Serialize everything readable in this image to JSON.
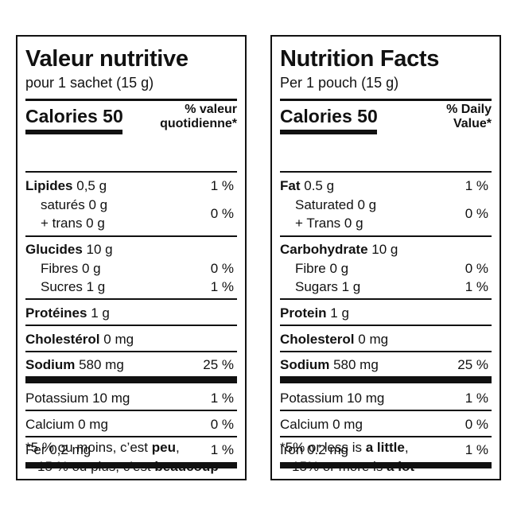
{
  "french": {
    "title": "Valeur nutritive",
    "serving": "pour 1 sachet (15 g)",
    "calories_label": "Calories",
    "calories_value": "50",
    "dv_header_line1": "% valeur",
    "dv_header_line2": "quotidienne",
    "dv_header_asterisk": "*",
    "fat_label": "Lipides",
    "fat_amount": "0,5 g",
    "fat_pct": "1 %",
    "saturated": "saturés 0 g",
    "trans": "+ trans 0 g",
    "sat_trans_pct": "0 %",
    "carb_label": "Glucides",
    "carb_amount": "10 g",
    "fibre": "Fibres 0 g",
    "fibre_pct": "0 %",
    "sugars": "Sucres 1 g",
    "sugars_pct": "1 %",
    "protein_label": "Protéines",
    "protein_amount": "1 g",
    "cholesterol_label": "Cholestérol",
    "cholesterol_amount": "0 mg",
    "sodium_label": "Sodium",
    "sodium_amount": "580 mg",
    "sodium_pct": "25 %",
    "potassium": "Potassium 10 mg",
    "potassium_pct": "1 %",
    "calcium": "Calcium 0 mg",
    "calcium_pct": "0 %",
    "iron": "Fer 0,2 mg",
    "iron_pct": "1 %",
    "foot1_pre": "*5 % ou moins, c’est ",
    "foot1_bold": "peu",
    "foot1_post": ",",
    "foot2_pre": "15 % ou plus, c’est ",
    "foot2_bold": "beaucoup"
  },
  "english": {
    "title": "Nutrition Facts",
    "serving": "Per 1 pouch (15 g)",
    "calories_label": "Calories",
    "calories_value": "50",
    "dv_header_line1": "% Daily",
    "dv_header_line2": "Value",
    "dv_header_asterisk": "*",
    "fat_label": "Fat",
    "fat_amount": "0.5 g",
    "fat_pct": "1 %",
    "saturated": "Saturated 0 g",
    "trans": "+ Trans 0 g",
    "sat_trans_pct": "0 %",
    "carb_label": "Carbohydrate",
    "carb_amount": "10 g",
    "fibre": "Fibre 0 g",
    "fibre_pct": "0 %",
    "sugars": "Sugars 1 g",
    "sugars_pct": "1 %",
    "protein_label": "Protein",
    "protein_amount": "1 g",
    "cholesterol_label": "Cholesterol",
    "cholesterol_amount": "0 mg",
    "sodium_label": "Sodium",
    "sodium_amount": "580 mg",
    "sodium_pct": "25 %",
    "potassium": "Potassium 10 mg",
    "potassium_pct": "1 %",
    "calcium": "Calcium 0 mg",
    "calcium_pct": "0 %",
    "iron": "Iron 0.2 mg",
    "iron_pct": "1 %",
    "foot1_pre": "*5% or less is ",
    "foot1_bold": "a little",
    "foot1_post": ",",
    "foot2_pre": "15% or more is ",
    "foot2_bold": "a lot"
  }
}
